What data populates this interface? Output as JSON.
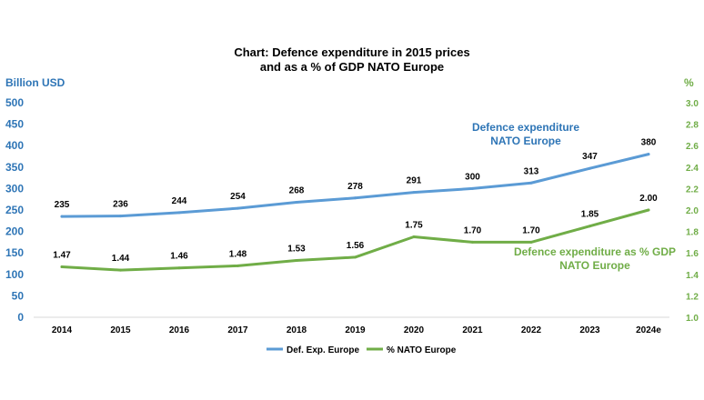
{
  "chart_data": {
    "type": "line",
    "title_lines": [
      "Chart: Defence expenditure in 2015 prices",
      "and as a % of GDP NATO Europe"
    ],
    "y_left_label": "Billion USD",
    "y_right_label": "%",
    "ylim_left": [
      0,
      500
    ],
    "ylim_right": [
      1.0,
      3.0
    ],
    "left_ticks": [
      "0",
      "50",
      "100",
      "150",
      "200",
      "250",
      "300",
      "350",
      "400",
      "450",
      "500"
    ],
    "right_ticks": [
      "1.0",
      "1.2",
      "1.4",
      "1.6",
      "1.8",
      "2.0",
      "2.2",
      "2.4",
      "2.6",
      "2.8",
      "3.0"
    ],
    "categories": [
      "2014",
      "2015",
      "2016",
      "2017",
      "2018",
      "2019",
      "2020",
      "2021",
      "2022",
      "2023",
      "2024e"
    ],
    "series": [
      {
        "name": "Def. Exp. Europe",
        "axis": "left",
        "color": "#5b9bd5",
        "values": [
          235,
          236,
          244,
          254,
          268,
          278,
          291,
          300,
          313,
          347,
          380
        ],
        "labels": [
          "235",
          "236",
          "244",
          "254",
          "268",
          "278",
          "291",
          "300",
          "313",
          "347",
          "380"
        ]
      },
      {
        "name": "% NATO Europe",
        "axis": "right",
        "color": "#70ad47",
        "values": [
          1.47,
          1.44,
          1.46,
          1.48,
          1.53,
          1.56,
          1.75,
          1.7,
          1.7,
          1.85,
          2.0
        ],
        "labels": [
          "1.47",
          "1.44",
          "1.46",
          "1.48",
          "1.53",
          "1.56",
          "1.75",
          "1.70",
          "1.70",
          "1.85",
          "2.00"
        ]
      }
    ],
    "annotations": [
      {
        "series": "Def. Exp. Europe",
        "lines": [
          "Defence expenditure",
          "NATO Europe"
        ],
        "color": "#2e75b6"
      },
      {
        "series": "% NATO Europe",
        "lines": [
          "Defence expenditure as % GDP",
          "NATO Europe"
        ],
        "color": "#70ad47"
      }
    ],
    "left_axis_color": "#2e75b6",
    "right_axis_color": "#70ad47",
    "grid": false,
    "legend_position": "bottom"
  }
}
